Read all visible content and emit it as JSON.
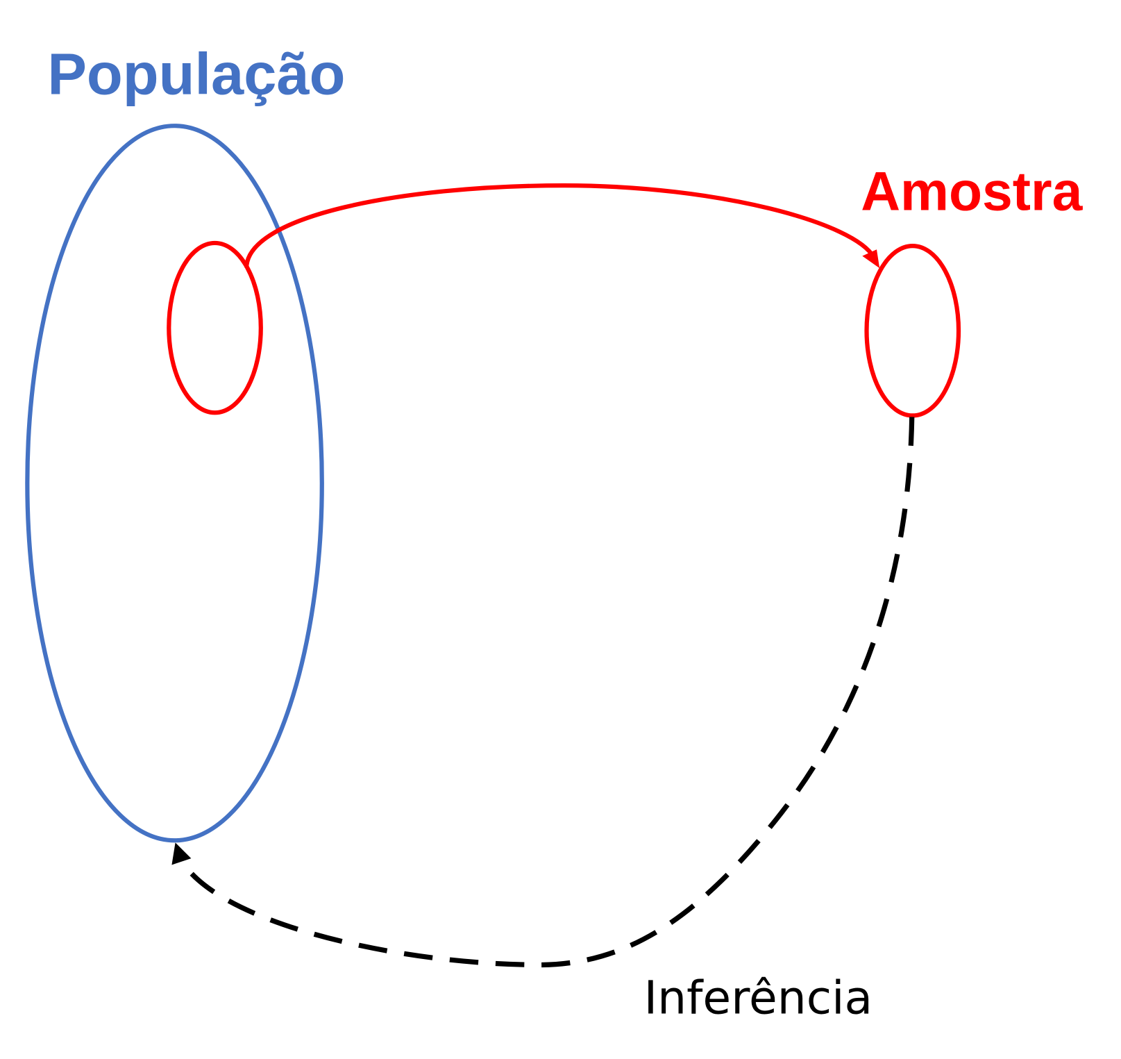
{
  "population": {
    "label": "População",
    "color": "#4472C4"
  },
  "sample": {
    "label": "Amostra",
    "color": "#FF0000"
  },
  "inference": {
    "label": "Inferência",
    "color": "#000000"
  }
}
